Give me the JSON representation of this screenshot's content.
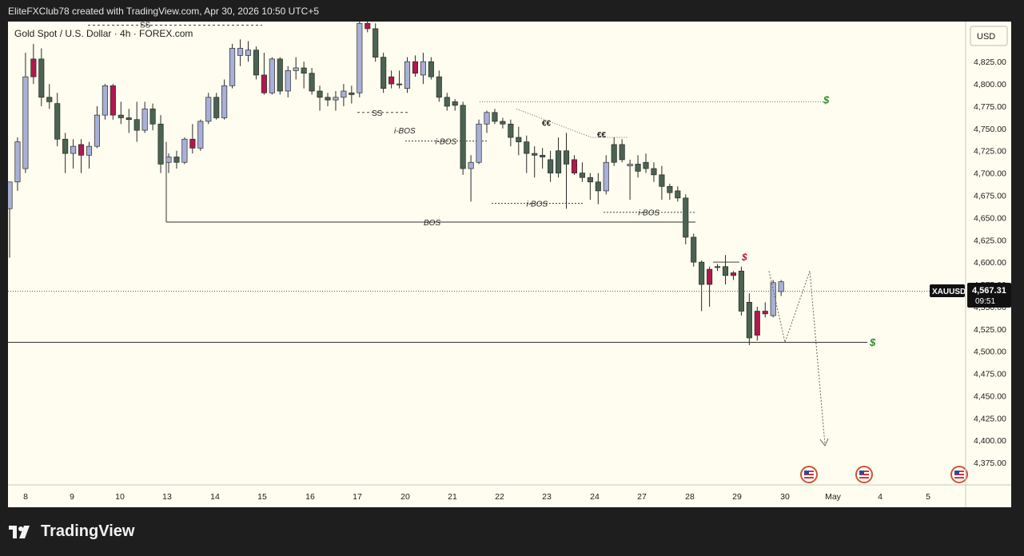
{
  "header": {
    "caption": "EliteFXClub78 created with TradingView.com, Apr 30, 2026 10:50 UTC+5"
  },
  "footer": {
    "brand": "TradingView",
    "logo_icon": "tradingview-logo-icon"
  },
  "colors": {
    "bull": "#a9b0d6",
    "bear_dark": "#4b6352",
    "bear_red": "#b0184e",
    "bg": "#fefdef",
    "green_marker": "#2e8b2e"
  },
  "chart_data": {
    "type": "candlestick",
    "title": "Gold Spot / U.S. Dollar · 4h · FOREX.com",
    "symbol": "XAUUSD",
    "currency": "USD",
    "last_price": "4,567.31",
    "countdown": "09:51",
    "ylim": [
      4350,
      4870
    ],
    "y_ticks": [
      "4,375.00",
      "4,400.00",
      "4,425.00",
      "4,450.00",
      "4,475.00",
      "4,500.00",
      "4,525.00",
      "4,550.00",
      "4,575.00",
      "4,600.00",
      "4,625.00",
      "4,650.00",
      "4,675.00",
      "4,700.00",
      "4,725.00",
      "4,750.00",
      "4,775.00",
      "4,800.00",
      "4,825.00"
    ],
    "x_labels": [
      "8",
      "9",
      "10",
      "13",
      "14",
      "15",
      "16",
      "17",
      "20",
      "21",
      "22",
      "23",
      "24",
      "27",
      "28",
      "29",
      "30",
      "May",
      "4",
      "5"
    ],
    "candles": [
      {
        "o": 4660,
        "h": 4690,
        "l": 4605,
        "c": 4690,
        "color": "bull"
      },
      {
        "o": 4690,
        "h": 4740,
        "l": 4680,
        "c": 4735,
        "color": "bull"
      },
      {
        "o": 4705,
        "h": 4835,
        "l": 4700,
        "c": 4808,
        "color": "bull"
      },
      {
        "o": 4808,
        "h": 4845,
        "l": 4800,
        "c": 4828,
        "color": "bear_red"
      },
      {
        "o": 4828,
        "h": 4840,
        "l": 4775,
        "c": 4785,
        "color": "bear_dark"
      },
      {
        "o": 4785,
        "h": 4800,
        "l": 4772,
        "c": 4780,
        "color": "bear_dark"
      },
      {
        "o": 4778,
        "h": 4790,
        "l": 4730,
        "c": 4738,
        "color": "bear_dark"
      },
      {
        "o": 4738,
        "h": 4745,
        "l": 4700,
        "c": 4722,
        "color": "bear_dark"
      },
      {
        "o": 4722,
        "h": 4738,
        "l": 4705,
        "c": 4730,
        "color": "bull"
      },
      {
        "o": 4732,
        "h": 4738,
        "l": 4700,
        "c": 4720,
        "color": "bear_red"
      },
      {
        "o": 4720,
        "h": 4735,
        "l": 4705,
        "c": 4730,
        "color": "bull"
      },
      {
        "o": 4730,
        "h": 4775,
        "l": 4728,
        "c": 4765,
        "color": "bull"
      },
      {
        "o": 4765,
        "h": 4800,
        "l": 4760,
        "c": 4798,
        "color": "bull"
      },
      {
        "o": 4798,
        "h": 4800,
        "l": 4760,
        "c": 4765,
        "color": "bear_red"
      },
      {
        "o": 4765,
        "h": 4780,
        "l": 4755,
        "c": 4762,
        "color": "bear_dark"
      },
      {
        "o": 4762,
        "h": 4772,
        "l": 4745,
        "c": 4760,
        "color": "bear_dark"
      },
      {
        "o": 4760,
        "h": 4780,
        "l": 4735,
        "c": 4748,
        "color": "bear_dark"
      },
      {
        "o": 4748,
        "h": 4780,
        "l": 4745,
        "c": 4772,
        "color": "bull"
      },
      {
        "o": 4772,
        "h": 4778,
        "l": 4748,
        "c": 4755,
        "color": "bear_dark"
      },
      {
        "o": 4755,
        "h": 4765,
        "l": 4700,
        "c": 4710,
        "color": "bear_dark"
      },
      {
        "o": 4712,
        "h": 4722,
        "l": 4700,
        "c": 4718,
        "color": "bull"
      },
      {
        "o": 4718,
        "h": 4725,
        "l": 4705,
        "c": 4712,
        "color": "bear_dark"
      },
      {
        "o": 4712,
        "h": 4740,
        "l": 4710,
        "c": 4738,
        "color": "bull"
      },
      {
        "o": 4738,
        "h": 4755,
        "l": 4722,
        "c": 4728,
        "color": "bear_red"
      },
      {
        "o": 4728,
        "h": 4760,
        "l": 4725,
        "c": 4758,
        "color": "bull"
      },
      {
        "o": 4758,
        "h": 4790,
        "l": 4755,
        "c": 4785,
        "color": "bull"
      },
      {
        "o": 4785,
        "h": 4790,
        "l": 4760,
        "c": 4762,
        "color": "bear_dark"
      },
      {
        "o": 4762,
        "h": 4805,
        "l": 4760,
        "c": 4798,
        "color": "bull"
      },
      {
        "o": 4798,
        "h": 4845,
        "l": 4795,
        "c": 4840,
        "color": "bull"
      },
      {
        "o": 4840,
        "h": 4850,
        "l": 4820,
        "c": 4832,
        "color": "bull"
      },
      {
        "o": 4832,
        "h": 4848,
        "l": 4825,
        "c": 4838,
        "color": "bull"
      },
      {
        "o": 4838,
        "h": 4842,
        "l": 4805,
        "c": 4810,
        "color": "bear_dark"
      },
      {
        "o": 4810,
        "h": 4835,
        "l": 4788,
        "c": 4790,
        "color": "bear_red"
      },
      {
        "o": 4790,
        "h": 4830,
        "l": 4788,
        "c": 4828,
        "color": "bull"
      },
      {
        "o": 4828,
        "h": 4830,
        "l": 4788,
        "c": 4792,
        "color": "bear_dark"
      },
      {
        "o": 4792,
        "h": 4820,
        "l": 4785,
        "c": 4815,
        "color": "bull"
      },
      {
        "o": 4815,
        "h": 4830,
        "l": 4805,
        "c": 4818,
        "color": "bull"
      },
      {
        "o": 4818,
        "h": 4825,
        "l": 4795,
        "c": 4812,
        "color": "bear_dark"
      },
      {
        "o": 4812,
        "h": 4818,
        "l": 4788,
        "c": 4792,
        "color": "bear_dark"
      },
      {
        "o": 4792,
        "h": 4798,
        "l": 4770,
        "c": 4785,
        "color": "bear_dark"
      },
      {
        "o": 4785,
        "h": 4790,
        "l": 4775,
        "c": 4782,
        "color": "bear_dark"
      },
      {
        "o": 4782,
        "h": 4792,
        "l": 4770,
        "c": 4785,
        "color": "bull"
      },
      {
        "o": 4785,
        "h": 4800,
        "l": 4775,
        "c": 4792,
        "color": "bull"
      },
      {
        "o": 4788,
        "h": 4798,
        "l": 4778,
        "c": 4790,
        "color": "bear_dark"
      },
      {
        "o": 4790,
        "h": 4870,
        "l": 4785,
        "c": 4868,
        "color": "bull"
      },
      {
        "o": 4868,
        "h": 4870,
        "l": 4858,
        "c": 4862,
        "color": "bear_red"
      },
      {
        "o": 4862,
        "h": 4868,
        "l": 4825,
        "c": 4830,
        "color": "bear_dark"
      },
      {
        "o": 4830,
        "h": 4835,
        "l": 4790,
        "c": 4795,
        "color": "bear_dark"
      },
      {
        "o": 4808,
        "h": 4815,
        "l": 4795,
        "c": 4800,
        "color": "bear_red"
      },
      {
        "o": 4800,
        "h": 4815,
        "l": 4795,
        "c": 4800,
        "color": "bear_dark"
      },
      {
        "o": 4795,
        "h": 4830,
        "l": 4790,
        "c": 4825,
        "color": "bull"
      },
      {
        "o": 4825,
        "h": 4832,
        "l": 4808,
        "c": 4812,
        "color": "bear_red"
      },
      {
        "o": 4810,
        "h": 4835,
        "l": 4800,
        "c": 4825,
        "color": "bull"
      },
      {
        "o": 4825,
        "h": 4830,
        "l": 4805,
        "c": 4808,
        "color": "bear_dark"
      },
      {
        "o": 4808,
        "h": 4815,
        "l": 4780,
        "c": 4785,
        "color": "bear_dark"
      },
      {
        "o": 4785,
        "h": 4790,
        "l": 4770,
        "c": 4775,
        "color": "bear_dark"
      },
      {
        "o": 4780,
        "h": 4783,
        "l": 4770,
        "c": 4776,
        "color": "bear_dark"
      },
      {
        "o": 4776,
        "h": 4780,
        "l": 4698,
        "c": 4705,
        "color": "bear_dark"
      },
      {
        "o": 4705,
        "h": 4720,
        "l": 4668,
        "c": 4712,
        "color": "bull"
      },
      {
        "o": 4712,
        "h": 4760,
        "l": 4710,
        "c": 4755,
        "color": "bull"
      },
      {
        "o": 4755,
        "h": 4770,
        "l": 4745,
        "c": 4768,
        "color": "bull"
      },
      {
        "o": 4768,
        "h": 4772,
        "l": 4755,
        "c": 4758,
        "color": "bear_dark"
      },
      {
        "o": 4758,
        "h": 4762,
        "l": 4750,
        "c": 4755,
        "color": "bear_dark"
      },
      {
        "o": 4755,
        "h": 4760,
        "l": 4730,
        "c": 4740,
        "color": "bear_dark"
      },
      {
        "o": 4740,
        "h": 4752,
        "l": 4720,
        "c": 4735,
        "color": "bear_dark"
      },
      {
        "o": 4735,
        "h": 4742,
        "l": 4700,
        "c": 4722,
        "color": "bear_dark"
      },
      {
        "o": 4722,
        "h": 4730,
        "l": 4695,
        "c": 4720,
        "color": "bear_dark"
      },
      {
        "o": 4720,
        "h": 4728,
        "l": 4705,
        "c": 4718,
        "color": "bear_dark"
      },
      {
        "o": 4715,
        "h": 4725,
        "l": 4690,
        "c": 4700,
        "color": "bear_dark"
      },
      {
        "o": 4700,
        "h": 4740,
        "l": 4695,
        "c": 4725,
        "color": "bear_dark"
      },
      {
        "o": 4725,
        "h": 4745,
        "l": 4660,
        "c": 4710,
        "color": "bear_dark"
      },
      {
        "o": 4715,
        "h": 4720,
        "l": 4698,
        "c": 4700,
        "color": "bear_red"
      },
      {
        "o": 4700,
        "h": 4712,
        "l": 4690,
        "c": 4695,
        "color": "bear_dark"
      },
      {
        "o": 4695,
        "h": 4700,
        "l": 4670,
        "c": 4690,
        "color": "bear_dark"
      },
      {
        "o": 4690,
        "h": 4700,
        "l": 4665,
        "c": 4680,
        "color": "bear_dark"
      },
      {
        "o": 4680,
        "h": 4720,
        "l": 4676,
        "c": 4712,
        "color": "bull"
      },
      {
        "o": 4712,
        "h": 4740,
        "l": 4708,
        "c": 4732,
        "color": "bear_dark"
      },
      {
        "o": 4732,
        "h": 4738,
        "l": 4712,
        "c": 4715,
        "color": "bear_dark"
      },
      {
        "o": 4708,
        "h": 4715,
        "l": 4670,
        "c": 4710,
        "color": "bull"
      },
      {
        "o": 4710,
        "h": 4720,
        "l": 4695,
        "c": 4702,
        "color": "bear_dark"
      },
      {
        "o": 4712,
        "h": 4722,
        "l": 4700,
        "c": 4705,
        "color": "bear_dark"
      },
      {
        "o": 4705,
        "h": 4712,
        "l": 4690,
        "c": 4698,
        "color": "bear_dark"
      },
      {
        "o": 4698,
        "h": 4708,
        "l": 4670,
        "c": 4685,
        "color": "bear_dark"
      },
      {
        "o": 4685,
        "h": 4688,
        "l": 4670,
        "c": 4678,
        "color": "bear_dark"
      },
      {
        "o": 4680,
        "h": 4685,
        "l": 4668,
        "c": 4672,
        "color": "bear_dark"
      },
      {
        "o": 4672,
        "h": 4676,
        "l": 4620,
        "c": 4628,
        "color": "bear_dark"
      },
      {
        "o": 4628,
        "h": 4632,
        "l": 4595,
        "c": 4600,
        "color": "bear_dark"
      },
      {
        "o": 4600,
        "h": 4602,
        "l": 4545,
        "c": 4575,
        "color": "bear_dark"
      },
      {
        "o": 4575,
        "h": 4595,
        "l": 4550,
        "c": 4592,
        "color": "bear_red"
      },
      {
        "o": 4594,
        "h": 4598,
        "l": 4590,
        "c": 4595,
        "color": "bear_dark"
      },
      {
        "o": 4595,
        "h": 4608,
        "l": 4575,
        "c": 4585,
        "color": "bear_dark"
      },
      {
        "o": 4585,
        "h": 4590,
        "l": 4580,
        "c": 4588,
        "color": "bear_red"
      },
      {
        "o": 4590,
        "h": 4595,
        "l": 4540,
        "c": 4545,
        "color": "bear_dark"
      },
      {
        "o": 4555,
        "h": 4565,
        "l": 4507,
        "c": 4515,
        "color": "bear_dark"
      },
      {
        "o": 4545,
        "h": 4550,
        "l": 4512,
        "c": 4518,
        "color": "bear_red"
      },
      {
        "o": 4542,
        "h": 4555,
        "l": 4538,
        "c": 4545,
        "color": "bear_red"
      },
      {
        "o": 4540,
        "h": 4580,
        "l": 4538,
        "c": 4577,
        "color": "bull"
      },
      {
        "o": 4567,
        "h": 4580,
        "l": 4562,
        "c": 4578,
        "color": "bull"
      }
    ],
    "annotations": {
      "ss_label": "SS",
      "ibos_label": "i-BOS",
      "bos_label": "BOS",
      "equal_label": "€€",
      "dollar_label": "$",
      "levels": {
        "top_dotted": 4780,
        "bos": 4645,
        "support": 4510,
        "current": 4567.31
      },
      "ibos_levels": [
        4736,
        4666,
        4656,
        4748
      ],
      "projection": [
        [
          4580,
          4590
        ],
        [
          4570,
          4510
        ],
        [
          4585,
          4590
        ],
        [
          4600,
          4395
        ]
      ]
    }
  }
}
